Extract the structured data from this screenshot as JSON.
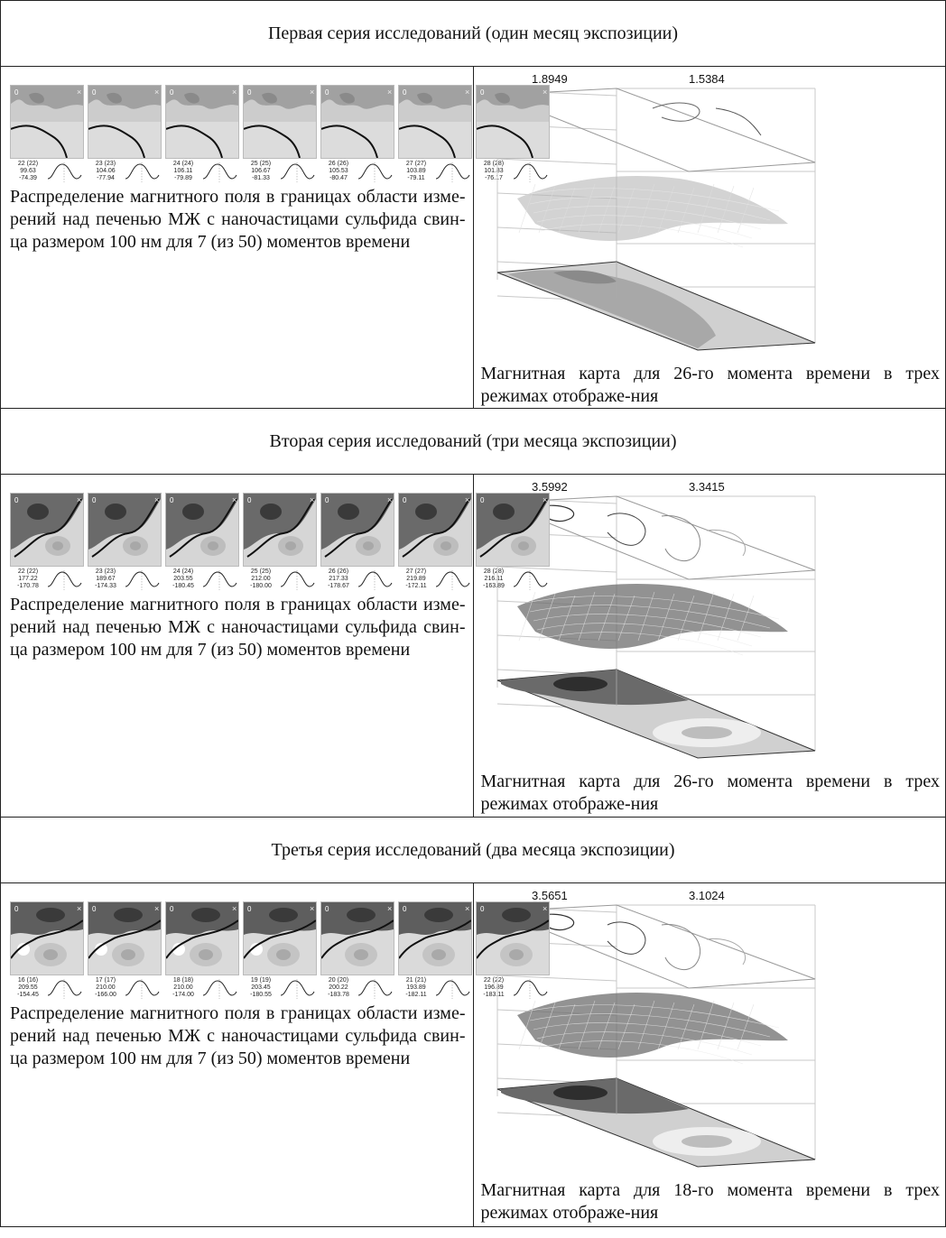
{
  "series": [
    {
      "header": "Первая серия исследований (один месяц экспозиции)",
      "left_caption": "Распределение магнитного поля в границах области изме-рений над печенью МЖ с наночастицами сульфида свин-ца размером 100 нм для 7 (из 50) моментов времени",
      "right_caption": "Магнитная карта для 26-го момента времени в трех режимах отображе-ния",
      "plot_labels": [
        "1.8949",
        "1.5384"
      ],
      "mini_maps": [
        {
          "id": "22 (22)",
          "v1": "99.63",
          "v2": "-74.39"
        },
        {
          "id": "23 (23)",
          "v1": "104.06",
          "v2": "-77.94"
        },
        {
          "id": "24 (24)",
          "v1": "106.11",
          "v2": "-79.89"
        },
        {
          "id": "25 (25)",
          "v1": "106.67",
          "v2": "-81.33"
        },
        {
          "id": "26 (26)",
          "v1": "105.53",
          "v2": "-80.47"
        },
        {
          "id": "27 (27)",
          "v1": "103.89",
          "v2": "-79.11"
        },
        {
          "id": "28 (28)",
          "v1": "101.83",
          "v2": "-76.17"
        }
      ]
    },
    {
      "header": "Вторая серия исследований (три месяца экспозиции)",
      "left_caption": "Распределение магнитного поля в границах области изме-рений над печенью МЖ с наночастицами сульфида свин-ца размером 100 нм для 7 (из 50) моментов времени",
      "right_caption": "Магнитная карта для 26-го момента времени в трех режимах отображе-ния",
      "plot_labels": [
        "3.5992",
        "3.3415"
      ],
      "mini_maps": [
        {
          "id": "22 (22)",
          "v1": "177.22",
          "v2": "-170.78"
        },
        {
          "id": "23 (23)",
          "v1": "189.67",
          "v2": "-174.33"
        },
        {
          "id": "24 (24)",
          "v1": "203.55",
          "v2": "-180.45"
        },
        {
          "id": "25 (25)",
          "v1": "212.00",
          "v2": "-180.00"
        },
        {
          "id": "26 (26)",
          "v1": "217.33",
          "v2": "-178.67"
        },
        {
          "id": "27 (27)",
          "v1": "219.89",
          "v2": "-172.11"
        },
        {
          "id": "28 (28)",
          "v1": "216.11",
          "v2": "-163.89"
        }
      ]
    },
    {
      "header": "Третья серия исследований (два месяца экспозиции)",
      "left_caption": "Распределение магнитного поля в границах области изме-рений над печенью МЖ с наночастицами сульфида свин-ца размером 100 нм для 7 (из 50) моментов времени",
      "right_caption": "Магнитная карта для 18-го момента времени в трех режимах отображе-ния",
      "plot_labels": [
        "3.5651",
        "3.1024"
      ],
      "mini_maps": [
        {
          "id": "16 (16)",
          "v1": "209.55",
          "v2": "-154.45"
        },
        {
          "id": "17 (17)",
          "v1": "210.00",
          "v2": "-166.00"
        },
        {
          "id": "18 (18)",
          "v1": "210.00",
          "v2": "-174.00"
        },
        {
          "id": "19 (19)",
          "v1": "203.45",
          "v2": "-180.55"
        },
        {
          "id": "20 (20)",
          "v1": "200.22",
          "v2": "-183.78"
        },
        {
          "id": "21 (21)",
          "v1": "193.89",
          "v2": "-182.11"
        },
        {
          "id": "22 (22)",
          "v1": "196.89",
          "v2": "-183.11"
        }
      ]
    }
  ]
}
